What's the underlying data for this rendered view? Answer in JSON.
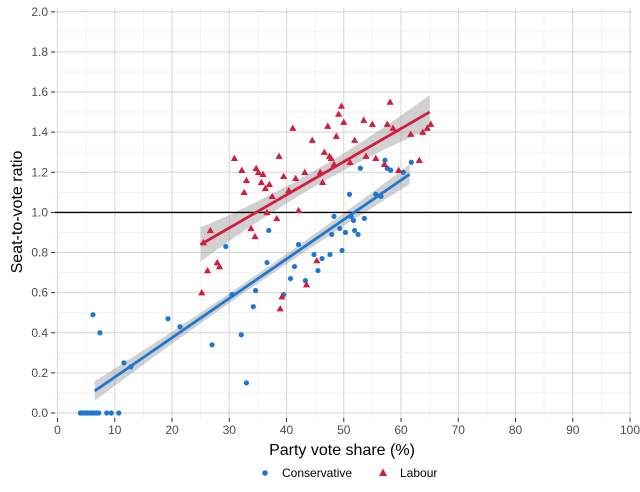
{
  "chart_data": {
    "type": "scatter",
    "xlabel": "Party vote share (%)",
    "ylabel": "Seat-to-vote ratio",
    "xlim": [
      0,
      100
    ],
    "ylim": [
      0,
      2
    ],
    "x_ticks": [
      "0",
      "10",
      "20",
      "30",
      "40",
      "50",
      "60",
      "70",
      "80",
      "90",
      "100"
    ],
    "y_ticks": [
      "0.0",
      "0.2",
      "0.4",
      "0.6",
      "0.8",
      "1.0",
      "1.2",
      "1.4",
      "1.6",
      "1.8",
      "2.0"
    ],
    "grid": true,
    "reference_line_y": 1.0,
    "legend_position": "bottom",
    "series": [
      {
        "name": "Conservative",
        "color": "#1f77d4",
        "marker": "circle",
        "points": [
          [
            4,
            0.0
          ],
          [
            4.3,
            0.0
          ],
          [
            4.6,
            0.0
          ],
          [
            5,
            0.0
          ],
          [
            5.3,
            0.0
          ],
          [
            5.7,
            0.0
          ],
          [
            6,
            0.0
          ],
          [
            6.4,
            0.0
          ],
          [
            6.8,
            0.0
          ],
          [
            7.2,
            0.0
          ],
          [
            8.6,
            0.0
          ],
          [
            9.4,
            0.0
          ],
          [
            10.7,
            0.0
          ],
          [
            6.2,
            0.49
          ],
          [
            7.4,
            0.4
          ],
          [
            11.6,
            0.25
          ],
          [
            12.8,
            0.23
          ],
          [
            19.3,
            0.47
          ],
          [
            21.4,
            0.43
          ],
          [
            27,
            0.34
          ],
          [
            29.4,
            0.83
          ],
          [
            30.5,
            0.59
          ],
          [
            32.1,
            0.39
          ],
          [
            33,
            0.15
          ],
          [
            34.2,
            0.53
          ],
          [
            34.6,
            0.61
          ],
          [
            36.6,
            0.75
          ],
          [
            36.9,
            0.91
          ],
          [
            39.5,
            0.59
          ],
          [
            40.7,
            0.67
          ],
          [
            41.4,
            0.73
          ],
          [
            42.1,
            0.84
          ],
          [
            43.3,
            0.66
          ],
          [
            44.8,
            0.79
          ],
          [
            45.5,
            0.71
          ],
          [
            46.2,
            0.77
          ],
          [
            47.6,
            0.79
          ],
          [
            47.9,
            0.89
          ],
          [
            48.3,
            0.98
          ],
          [
            49.3,
            0.92
          ],
          [
            49.7,
            0.81
          ],
          [
            50.3,
            0.9
          ],
          [
            51,
            1.09
          ],
          [
            51.3,
            0.98
          ],
          [
            51.7,
            0.96
          ],
          [
            51.9,
            0.91
          ],
          [
            52.5,
            0.89
          ],
          [
            52.9,
            1.22
          ],
          [
            53.6,
            0.97
          ],
          [
            55.6,
            1.09
          ],
          [
            56.5,
            1.08
          ],
          [
            57.2,
            1.26
          ],
          [
            57.6,
            1.22
          ],
          [
            58.2,
            1.21
          ],
          [
            60.4,
            1.2
          ],
          [
            61.8,
            1.25
          ]
        ],
        "fit": {
          "x": [
            6.5,
            61.5
          ],
          "y": [
            0.11,
            1.19
          ]
        }
      },
      {
        "name": "Labour",
        "color": "#d31c3e",
        "marker": "triangle",
        "points": [
          [
            25.2,
            0.6
          ],
          [
            25.5,
            0.85
          ],
          [
            26.2,
            0.71
          ],
          [
            26.7,
            0.91
          ],
          [
            27.9,
            0.75
          ],
          [
            28.3,
            0.73
          ],
          [
            30.9,
            1.27
          ],
          [
            32.2,
            1.21
          ],
          [
            32.6,
            1.1
          ],
          [
            33,
            1.16
          ],
          [
            33.8,
            0.92
          ],
          [
            34.5,
            0.88
          ],
          [
            34.7,
            1.22
          ],
          [
            35.1,
            1.2
          ],
          [
            35.6,
            1.15
          ],
          [
            35.9,
            1.19
          ],
          [
            36.3,
            1.12
          ],
          [
            36.6,
            1.0
          ],
          [
            37,
            1.14
          ],
          [
            37.5,
            1.08
          ],
          [
            38.3,
            0.97
          ],
          [
            38.7,
            1.28
          ],
          [
            38.9,
            0.52
          ],
          [
            39.2,
            0.58
          ],
          [
            39.5,
            1.18
          ],
          [
            40.4,
            1.11
          ],
          [
            41.1,
            1.42
          ],
          [
            41.6,
            1.17
          ],
          [
            42.1,
            1.01
          ],
          [
            43.2,
            1.2
          ],
          [
            43.5,
            0.64
          ],
          [
            44.5,
            1.36
          ],
          [
            45.3,
            0.76
          ],
          [
            45.9,
            1.2
          ],
          [
            46.3,
            1.15
          ],
          [
            46.6,
            1.3
          ],
          [
            47.2,
            1.43
          ],
          [
            47.5,
            1.28
          ],
          [
            47.8,
            1.27
          ],
          [
            48.3,
            1.24
          ],
          [
            48.7,
            1.38
          ],
          [
            49.1,
            1.49
          ],
          [
            49.6,
            1.53
          ],
          [
            50,
            1.45
          ],
          [
            51.1,
            1.25
          ],
          [
            51.9,
            1.36
          ],
          [
            53.5,
            1.46
          ],
          [
            53.9,
            1.28
          ],
          [
            55,
            1.44
          ],
          [
            55.6,
            1.27
          ],
          [
            57.1,
            1.24
          ],
          [
            57.6,
            1.44
          ],
          [
            58.1,
            1.55
          ],
          [
            58.6,
            1.42
          ],
          [
            59.6,
            1.21
          ],
          [
            61.7,
            1.39
          ],
          [
            63.2,
            1.26
          ],
          [
            63.8,
            1.4
          ],
          [
            64.6,
            1.42
          ],
          [
            65.2,
            1.44
          ]
        ],
        "fit": {
          "x": [
            25,
            65
          ],
          "y": [
            0.84,
            1.5
          ]
        }
      }
    ]
  }
}
